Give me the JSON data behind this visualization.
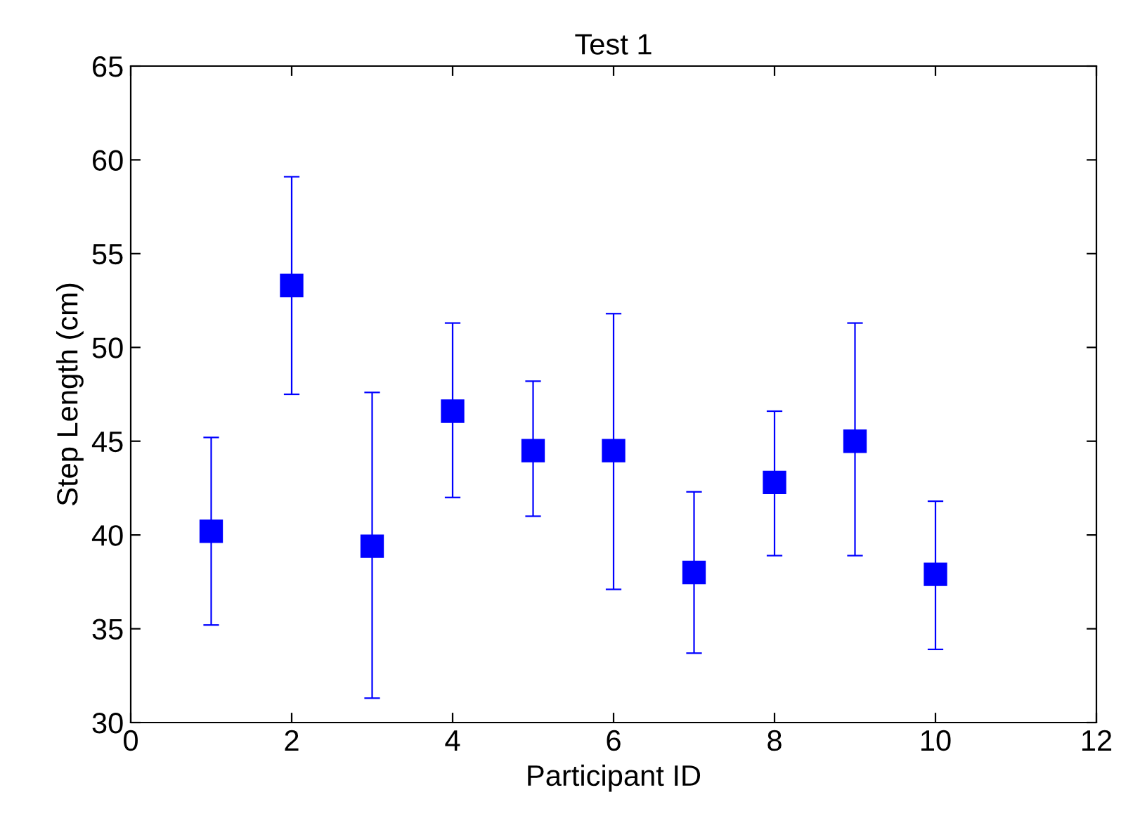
{
  "chart_data": {
    "type": "scatter",
    "title": "Test 1",
    "xlabel": "Participant ID",
    "ylabel": "Step Length (cm)",
    "x": [
      1,
      2,
      3,
      4,
      5,
      6,
      7,
      8,
      9,
      10
    ],
    "series": [
      {
        "color": "#0000ff",
        "values": [
          40.2,
          53.3,
          39.4,
          46.6,
          44.5,
          44.5,
          38.0,
          42.8,
          45.0,
          37.9
        ],
        "errors": [
          [
            35.2,
            45.2
          ],
          [
            47.5,
            59.1
          ],
          [
            31.3,
            47.6
          ],
          [
            42.0,
            51.3
          ],
          [
            41.0,
            48.2
          ],
          [
            37.1,
            51.8
          ],
          [
            33.7,
            42.3
          ],
          [
            38.9,
            46.6
          ],
          [
            38.9,
            51.3
          ],
          [
            33.9,
            41.8
          ]
        ]
      }
    ],
    "xlim": [
      0,
      12
    ],
    "xticks": [
      0,
      2,
      4,
      6,
      8,
      10,
      12
    ],
    "ylim": [
      30,
      65
    ],
    "yticks": [
      30,
      35,
      40,
      45,
      50,
      55,
      60,
      65
    ],
    "grid": false,
    "legend": false,
    "marker": "square"
  }
}
